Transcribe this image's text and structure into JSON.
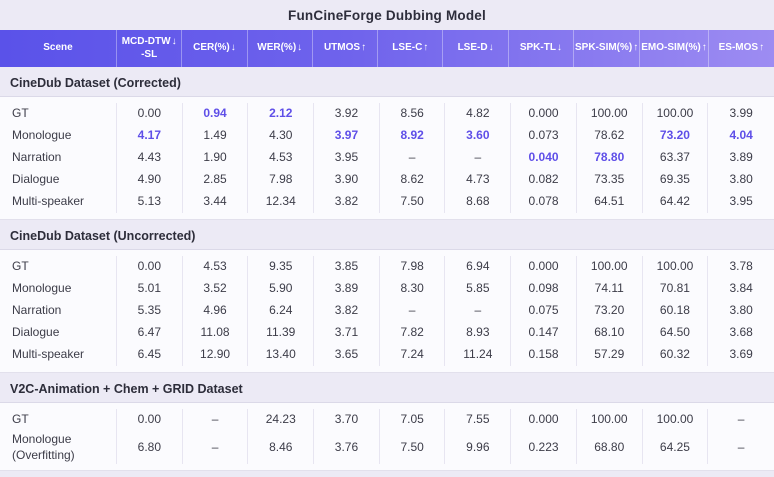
{
  "title": "FunCineForge Dubbing Model",
  "colors": {
    "header_gradient_start": "#5A52E9",
    "header_gradient_end": "#9D8CF2",
    "accent_highlight": "#5F4FE8",
    "page_background": "#ECEAF5",
    "row_background": "#FBFBFE"
  },
  "columns": [
    {
      "label": "Scene",
      "arrow": "",
      "line2": ""
    },
    {
      "label": "MCD-DTW",
      "arrow": "↓",
      "line2": "-SL"
    },
    {
      "label": "CER(%)",
      "arrow": "↓",
      "line2": ""
    },
    {
      "label": "WER(%)",
      "arrow": "↓",
      "line2": ""
    },
    {
      "label": "UTMOS",
      "arrow": "↑",
      "line2": ""
    },
    {
      "label": "LSE-C",
      "arrow": "↑",
      "line2": ""
    },
    {
      "label": "LSE-D",
      "arrow": "↓",
      "line2": ""
    },
    {
      "label": "SPK-TL",
      "arrow": "↓",
      "line2": ""
    },
    {
      "label": "SPK-SIM(%)",
      "arrow": "↑",
      "line2": ""
    },
    {
      "label": "EMO-SIM(%)",
      "arrow": "↑",
      "line2": ""
    },
    {
      "label": "ES-MOS",
      "arrow": "↑",
      "line2": ""
    }
  ],
  "sections": [
    {
      "title": "CineDub Dataset (Corrected)",
      "rows": [
        {
          "scene": "GT",
          "values": [
            "0.00",
            {
              "v": "0.94",
              "hl": true
            },
            {
              "v": "2.12",
              "hl": true
            },
            "3.92",
            "8.56",
            "4.82",
            "0.000",
            "100.00",
            "100.00",
            "3.99"
          ]
        },
        {
          "scene": "Monologue",
          "values": [
            {
              "v": "4.17",
              "hl": true
            },
            "1.49",
            "4.30",
            {
              "v": "3.97",
              "hl": true
            },
            {
              "v": "8.92",
              "hl": true
            },
            {
              "v": "3.60",
              "hl": true
            },
            "0.073",
            "78.62",
            {
              "v": "73.20",
              "hl": true
            },
            {
              "v": "4.04",
              "hl": true
            }
          ]
        },
        {
          "scene": "Narration",
          "values": [
            "4.43",
            "1.90",
            "4.53",
            "3.95",
            "–",
            "–",
            {
              "v": "0.040",
              "hl": true
            },
            {
              "v": "78.80",
              "hl": true
            },
            "63.37",
            "3.89"
          ]
        },
        {
          "scene": "Dialogue",
          "values": [
            "4.90",
            "2.85",
            "7.98",
            "3.90",
            "8.62",
            "4.73",
            "0.082",
            "73.35",
            "69.35",
            "3.80"
          ]
        },
        {
          "scene": "Multi-speaker",
          "values": [
            "5.13",
            "3.44",
            "12.34",
            "3.82",
            "7.50",
            "8.68",
            "0.078",
            "64.51",
            "64.42",
            "3.95"
          ]
        }
      ]
    },
    {
      "title": "CineDub Dataset (Uncorrected)",
      "rows": [
        {
          "scene": "GT",
          "values": [
            "0.00",
            "4.53",
            "9.35",
            "3.85",
            "7.98",
            "6.94",
            "0.000",
            "100.00",
            "100.00",
            "3.78"
          ]
        },
        {
          "scene": "Monologue",
          "values": [
            "5.01",
            "3.52",
            "5.90",
            "3.89",
            "8.30",
            "5.85",
            "0.098",
            "74.11",
            "70.81",
            "3.84"
          ]
        },
        {
          "scene": "Narration",
          "values": [
            "5.35",
            "4.96",
            "6.24",
            "3.82",
            "–",
            "–",
            "0.075",
            "73.20",
            "60.18",
            "3.80"
          ]
        },
        {
          "scene": "Dialogue",
          "values": [
            "6.47",
            "11.08",
            "11.39",
            "3.71",
            "7.82",
            "8.93",
            "0.147",
            "68.10",
            "64.50",
            "3.68"
          ]
        },
        {
          "scene": "Multi-speaker",
          "values": [
            "6.45",
            "12.90",
            "13.40",
            "3.65",
            "7.24",
            "11.24",
            "0.158",
            "57.29",
            "60.32",
            "3.69"
          ]
        }
      ]
    },
    {
      "title": "V2C-Animation + Chem + GRID Dataset",
      "rows": [
        {
          "scene": "GT",
          "values": [
            "0.00",
            "–",
            "24.23",
            "3.70",
            "7.05",
            "7.55",
            "0.000",
            "100.00",
            "100.00",
            "–"
          ]
        },
        {
          "scene": "Monologue (Overfitting)",
          "values": [
            "6.80",
            "–",
            "8.46",
            "3.76",
            "7.50",
            "9.96",
            "0.223",
            "68.80",
            "64.25",
            "–"
          ]
        }
      ]
    }
  ]
}
